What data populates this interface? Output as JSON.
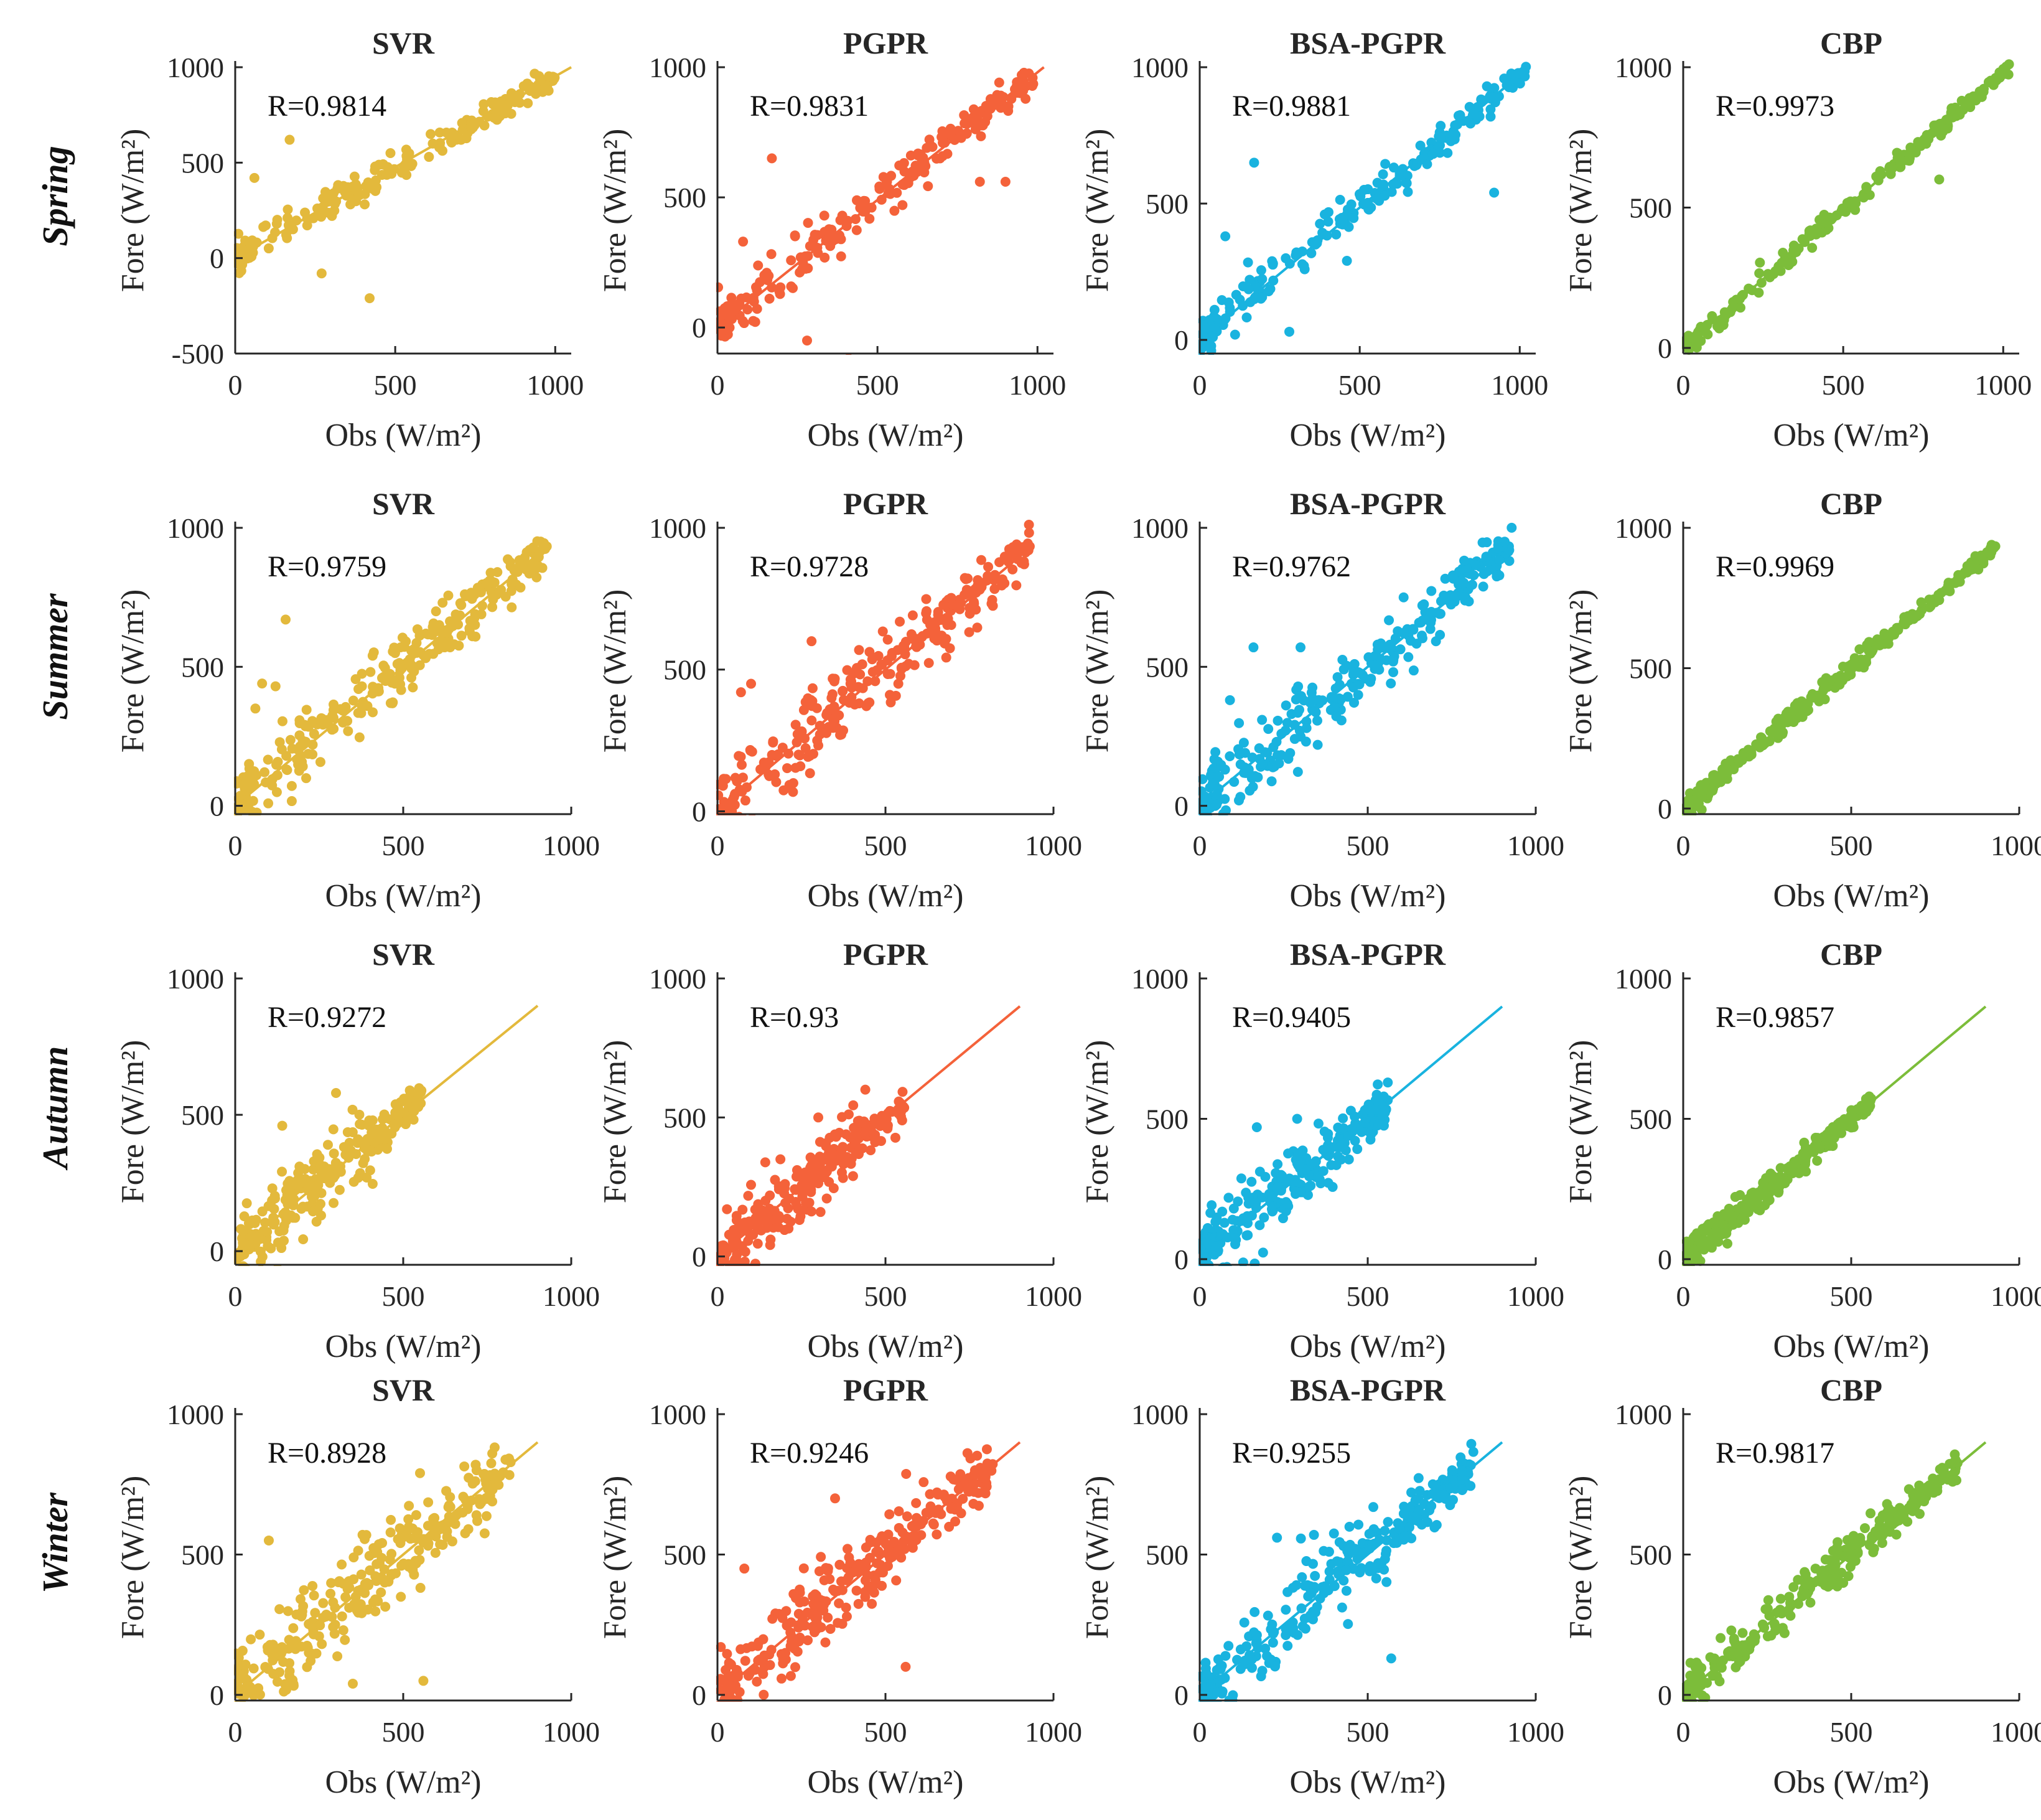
{
  "colors": {
    "SVR": "#e3b93c",
    "PGPR": "#f4623a",
    "BSA-PGPR": "#19b3df",
    "CBP": "#7cbd3a"
  },
  "seasons": [
    "Spring",
    "Summer",
    "Autumn",
    "Winter"
  ],
  "models": [
    "SVR",
    "PGPR",
    "BSA-PGPR",
    "CBP"
  ],
  "chart_data": [
    {
      "type": "scatter",
      "season": "Spring",
      "title": "SVR",
      "r_label": "R=0.9814",
      "xlabel": "Obs (W/m²)",
      "ylabel": "Fore (W/m²)",
      "xlim": [
        0,
        1050
      ],
      "ylim": [
        -500,
        1000
      ],
      "xticks": [
        "0",
        "500",
        "1000"
      ],
      "yticks": [
        "-500",
        "0",
        "500",
        "1000"
      ],
      "fit_line": [
        [
          0,
          0
        ],
        [
          1050,
          1000
        ]
      ],
      "cluster": {
        "max": 1000,
        "spread": 40,
        "count": 200
      },
      "outliers": [
        [
          420,
          -210
        ],
        [
          270,
          -80
        ],
        [
          170,
          620
        ],
        [
          60,
          420
        ],
        [
          130,
          180
        ]
      ]
    },
    {
      "type": "scatter",
      "season": "Spring",
      "title": "PGPR",
      "r_label": "R=0.9831",
      "xlabel": "Obs (W/m²)",
      "ylabel": "Fore (W/m²)",
      "xlim": [
        0,
        1050
      ],
      "ylim": [
        -100,
        1000
      ],
      "xticks": [
        "0",
        "500",
        "1000"
      ],
      "yticks": [
        "0",
        "500",
        "1000"
      ],
      "fit_line": [
        [
          0,
          0
        ],
        [
          1020,
          1000
        ]
      ],
      "cluster": {
        "max": 1010,
        "spread": 40,
        "count": 200
      },
      "outliers": [
        [
          170,
          650
        ],
        [
          280,
          -50
        ],
        [
          410,
          -120
        ],
        [
          900,
          560
        ],
        [
          820,
          560
        ],
        [
          80,
          330
        ]
      ]
    },
    {
      "type": "scatter",
      "season": "Spring",
      "title": "BSA-PGPR",
      "r_label": "R=0.9881",
      "xlabel": "Obs (W/m²)",
      "ylabel": "Fore (W/m²)",
      "xlim": [
        0,
        1050
      ],
      "ylim": [
        -50,
        1000
      ],
      "xticks": [
        "0",
        "500",
        "1000"
      ],
      "yticks": [
        "0",
        "500",
        "1000"
      ],
      "fit_line": [
        [
          0,
          0
        ],
        [
          1030,
          1000
        ]
      ],
      "cluster": {
        "max": 1020,
        "spread": 35,
        "count": 200
      },
      "outliers": [
        [
          170,
          650
        ],
        [
          280,
          30
        ],
        [
          80,
          380
        ],
        [
          920,
          540
        ],
        [
          460,
          290
        ]
      ]
    },
    {
      "type": "scatter",
      "season": "Spring",
      "title": "CBP",
      "r_label": "R=0.9973",
      "xlabel": "Obs (W/m²)",
      "ylabel": "Fore (W/m²)",
      "xlim": [
        0,
        1050
      ],
      "ylim": [
        -20,
        1000
      ],
      "xticks": [
        "0",
        "500",
        "1000"
      ],
      "yticks": [
        "0",
        "500",
        "1000"
      ],
      "fit_line": [
        [
          0,
          0
        ],
        [
          1030,
          1010
        ]
      ],
      "cluster": {
        "max": 1020,
        "spread": 18,
        "count": 200
      },
      "outliers": [
        [
          800,
          600
        ]
      ]
    },
    {
      "type": "scatter",
      "season": "Summer",
      "title": "SVR",
      "r_label": "R=0.9759",
      "xlabel": "Obs (W/m²)",
      "ylabel": "Fore (W/m²)",
      "xlim": [
        0,
        1000
      ],
      "ylim": [
        -30,
        1000
      ],
      "xticks": [
        "0",
        "500",
        "1000"
      ],
      "yticks": [
        "0",
        "500",
        "1000"
      ],
      "fit_line": [
        [
          0,
          0
        ],
        [
          930,
          930
        ]
      ],
      "cluster": {
        "max": 930,
        "spread": 60,
        "count": 260
      },
      "outliers": [
        [
          150,
          670
        ],
        [
          80,
          440
        ],
        [
          120,
          430
        ],
        [
          60,
          350
        ]
      ]
    },
    {
      "type": "scatter",
      "season": "Summer",
      "title": "PGPR",
      "r_label": "R=0.9728",
      "xlabel": "Obs (W/m²)",
      "ylabel": "Fore (W/m²)",
      "xlim": [
        0,
        1000
      ],
      "ylim": [
        -10,
        1000
      ],
      "xticks": [
        "0",
        "500",
        "1000"
      ],
      "yticks": [
        "0",
        "500",
        "1000"
      ],
      "fit_line": [
        [
          0,
          0
        ],
        [
          930,
          930
        ]
      ],
      "cluster": {
        "max": 930,
        "spread": 65,
        "count": 260
      },
      "outliers": [
        [
          70,
          420
        ],
        [
          280,
          600
        ],
        [
          100,
          450
        ]
      ]
    },
    {
      "type": "scatter",
      "season": "Summer",
      "title": "BSA-PGPR",
      "r_label": "R=0.9762",
      "xlabel": "Obs (W/m²)",
      "ylabel": "Fore (W/m²)",
      "xlim": [
        0,
        1000
      ],
      "ylim": [
        -30,
        1000
      ],
      "xticks": [
        "0",
        "500",
        "1000"
      ],
      "yticks": [
        "0",
        "500",
        "1000"
      ],
      "fit_line": [
        [
          0,
          0
        ],
        [
          930,
          930
        ]
      ],
      "cluster": {
        "max": 930,
        "spread": 60,
        "count": 260
      },
      "outliers": [
        [
          160,
          570
        ],
        [
          300,
          570
        ],
        [
          90,
          380
        ]
      ]
    },
    {
      "type": "scatter",
      "season": "Summer",
      "title": "CBP",
      "r_label": "R=0.9969",
      "xlabel": "Obs (W/m²)",
      "ylabel": "Fore (W/m²)",
      "xlim": [
        0,
        1000
      ],
      "ylim": [
        -20,
        1000
      ],
      "xticks": [
        "0",
        "500",
        "1000"
      ],
      "yticks": [
        "0",
        "500",
        "1000"
      ],
      "fit_line": [
        [
          0,
          0
        ],
        [
          930,
          930
        ]
      ],
      "cluster": {
        "max": 930,
        "spread": 18,
        "count": 260
      },
      "outliers": []
    },
    {
      "type": "scatter",
      "season": "Autumn",
      "title": "SVR",
      "r_label": "R=0.9272",
      "xlabel": "Obs (W/m²)",
      "ylabel": "Fore (W/m²)",
      "xlim": [
        0,
        1000
      ],
      "ylim": [
        -50,
        1000
      ],
      "xticks": [
        "0",
        "500",
        "1000"
      ],
      "yticks": [
        "0",
        "500",
        "1000"
      ],
      "fit_line": [
        [
          0,
          0
        ],
        [
          900,
          900
        ]
      ],
      "cluster": {
        "max": 560,
        "spread": 60,
        "count": 240
      },
      "outliers": [
        [
          300,
          580
        ],
        [
          140,
          460
        ]
      ]
    },
    {
      "type": "scatter",
      "season": "Autumn",
      "title": "PGPR",
      "r_label": "R=0.93",
      "xlabel": "Obs (W/m²)",
      "ylabel": "Fore (W/m²)",
      "xlim": [
        0,
        1000
      ],
      "ylim": [
        -30,
        1000
      ],
      "xticks": [
        "0",
        "500",
        "1000"
      ],
      "yticks": [
        "0",
        "500",
        "1000"
      ],
      "fit_line": [
        [
          0,
          0
        ],
        [
          900,
          900
        ]
      ],
      "cluster": {
        "max": 560,
        "spread": 60,
        "count": 240
      },
      "outliers": [
        [
          300,
          500
        ],
        [
          440,
          600
        ]
      ]
    },
    {
      "type": "scatter",
      "season": "Autumn",
      "title": "BSA-PGPR",
      "r_label": "R=0.9405",
      "xlabel": "Obs (W/m²)",
      "ylabel": "Fore (W/m²)",
      "xlim": [
        0,
        1000
      ],
      "ylim": [
        -20,
        1000
      ],
      "xticks": [
        "0",
        "500",
        "1000"
      ],
      "yticks": [
        "0",
        "500",
        "1000"
      ],
      "fit_line": [
        [
          0,
          0
        ],
        [
          900,
          900
        ]
      ],
      "cluster": {
        "max": 560,
        "spread": 55,
        "count": 240
      },
      "outliers": [
        [
          170,
          470
        ],
        [
          290,
          500
        ]
      ]
    },
    {
      "type": "scatter",
      "season": "Autumn",
      "title": "CBP",
      "r_label": "R=0.9857",
      "xlabel": "Obs (W/m²)",
      "ylabel": "Fore (W/m²)",
      "xlim": [
        0,
        1000
      ],
      "ylim": [
        -20,
        1000
      ],
      "xticks": [
        "0",
        "500",
        "1000"
      ],
      "yticks": [
        "0",
        "500",
        "1000"
      ],
      "fit_line": [
        [
          0,
          0
        ],
        [
          900,
          900
        ]
      ],
      "cluster": {
        "max": 560,
        "spread": 25,
        "count": 240
      },
      "outliers": []
    },
    {
      "type": "scatter",
      "season": "Winter",
      "title": "SVR",
      "r_label": "R=0.8928",
      "xlabel": "Obs (W/m²)",
      "ylabel": "Fore (W/m²)",
      "xlim": [
        0,
        1000
      ],
      "ylim": [
        -20,
        1000
      ],
      "xticks": [
        "0",
        "500",
        "1000"
      ],
      "yticks": [
        "0",
        "500",
        "1000"
      ],
      "fit_line": [
        [
          0,
          0
        ],
        [
          900,
          900
        ]
      ],
      "cluster": {
        "max": 820,
        "spread": 80,
        "count": 280
      },
      "outliers": [
        [
          550,
          790
        ],
        [
          100,
          550
        ],
        [
          560,
          50
        ],
        [
          350,
          40
        ]
      ]
    },
    {
      "type": "scatter",
      "season": "Winter",
      "title": "PGPR",
      "r_label": "R=0.9246",
      "xlabel": "Obs (W/m²)",
      "ylabel": "Fore (W/m²)",
      "xlim": [
        0,
        1000
      ],
      "ylim": [
        -20,
        1000
      ],
      "xticks": [
        "0",
        "500",
        "1000"
      ],
      "yticks": [
        "0",
        "500",
        "1000"
      ],
      "fit_line": [
        [
          0,
          0
        ],
        [
          900,
          900
        ]
      ],
      "cluster": {
        "max": 820,
        "spread": 70,
        "count": 280
      },
      "outliers": [
        [
          350,
          700
        ],
        [
          80,
          450
        ],
        [
          560,
          100
        ]
      ]
    },
    {
      "type": "scatter",
      "season": "Winter",
      "title": "BSA-PGPR",
      "r_label": "R=0.9255",
      "xlabel": "Obs (W/m²)",
      "ylabel": "Fore (W/m²)",
      "xlim": [
        0,
        1000
      ],
      "ylim": [
        -20,
        1000
      ],
      "xticks": [
        "0",
        "500",
        "1000"
      ],
      "yticks": [
        "0",
        "500",
        "1000"
      ],
      "fit_line": [
        [
          0,
          0
        ],
        [
          900,
          900
        ]
      ],
      "cluster": {
        "max": 820,
        "spread": 70,
        "count": 280
      },
      "outliers": [
        [
          230,
          560
        ],
        [
          340,
          570
        ],
        [
          570,
          130
        ]
      ]
    },
    {
      "type": "scatter",
      "season": "Winter",
      "title": "CBP",
      "r_label": "R=0.9817",
      "xlabel": "Obs (W/m²)",
      "ylabel": "Fore (W/m²)",
      "xlim": [
        0,
        1000
      ],
      "ylim": [
        -20,
        1000
      ],
      "xticks": [
        "0",
        "500",
        "1000"
      ],
      "yticks": [
        "0",
        "500",
        "1000"
      ],
      "fit_line": [
        [
          0,
          0
        ],
        [
          900,
          900
        ]
      ],
      "cluster": {
        "max": 820,
        "spread": 35,
        "count": 280
      },
      "outliers": []
    }
  ]
}
